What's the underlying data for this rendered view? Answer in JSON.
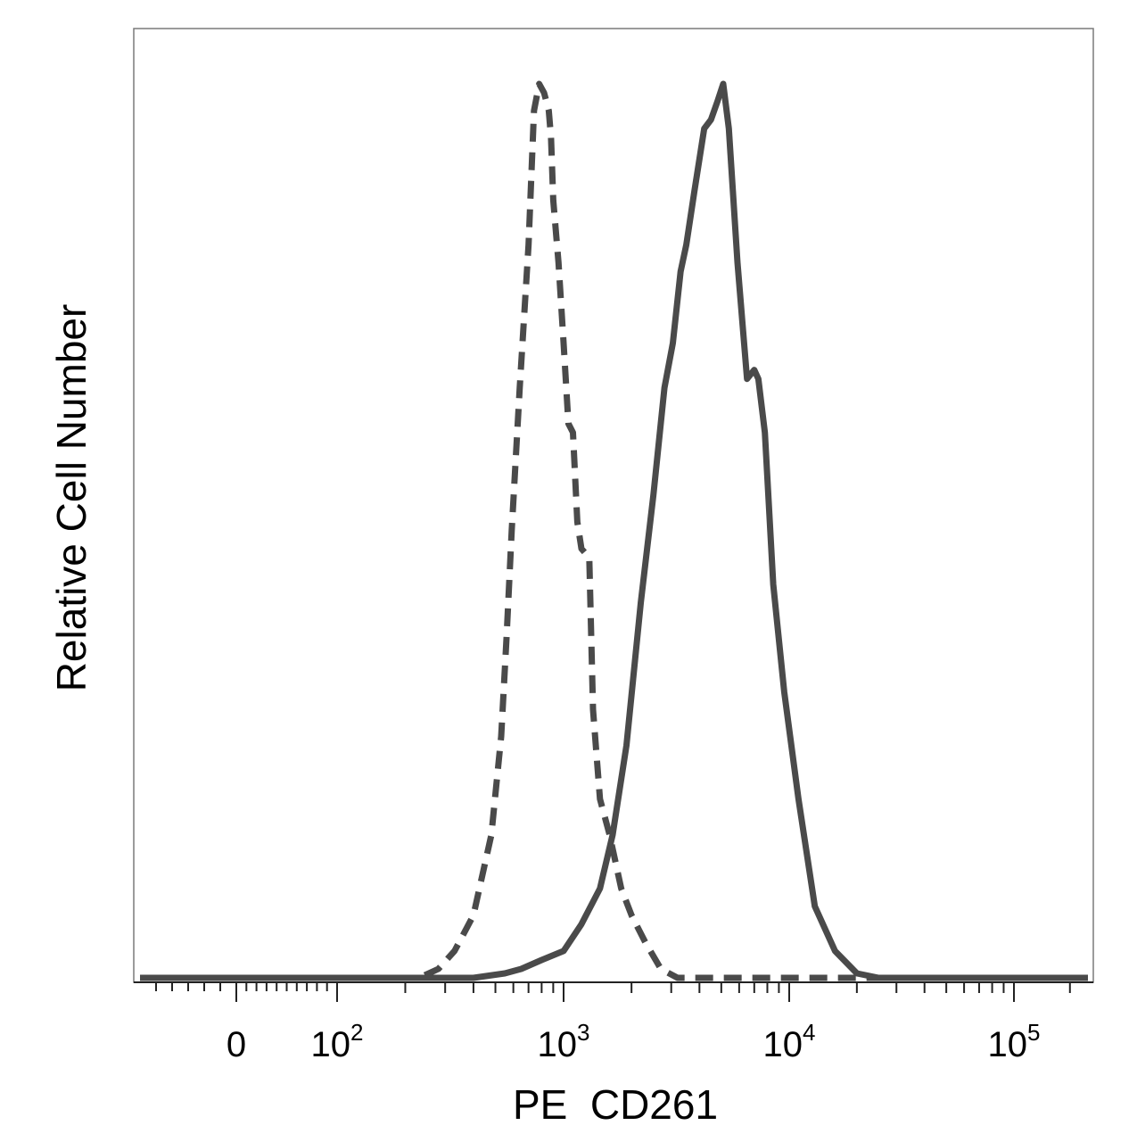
{
  "chart_data": {
    "type": "line",
    "title": "",
    "xlabel": "PE  CD261",
    "ylabel": "Relative Cell Number",
    "x_scale": "biexponential",
    "xlim": [
      -60,
      250000
    ],
    "ylim": [
      0,
      1
    ],
    "grid": false,
    "legend": "none",
    "x_ticks": [
      {
        "value": 0,
        "base": "0",
        "exp": ""
      },
      {
        "value": 100,
        "base": "10",
        "exp": "2"
      },
      {
        "value": 1000,
        "base": "10",
        "exp": "3"
      },
      {
        "value": 10000,
        "base": "10",
        "exp": "4"
      },
      {
        "value": 100000,
        "base": "10",
        "exp": "5"
      }
    ],
    "series": [
      {
        "style": "dashed",
        "color": "#4a4a4a",
        "points": [
          [
            -60,
            0.0
          ],
          [
            150,
            0.0
          ],
          [
            230,
            0.0
          ],
          [
            280,
            0.01
          ],
          [
            330,
            0.03
          ],
          [
            400,
            0.07
          ],
          [
            480,
            0.16
          ],
          [
            530,
            0.27
          ],
          [
            560,
            0.38
          ],
          [
            590,
            0.5
          ],
          [
            640,
            0.66
          ],
          [
            700,
            0.82
          ],
          [
            740,
            0.97
          ],
          [
            780,
            1.0
          ],
          [
            820,
            0.99
          ],
          [
            860,
            0.97
          ],
          [
            880,
            0.94
          ],
          [
            900,
            0.87
          ],
          [
            950,
            0.8
          ],
          [
            1000,
            0.71
          ],
          [
            1050,
            0.62
          ],
          [
            1100,
            0.61
          ],
          [
            1150,
            0.51
          ],
          [
            1200,
            0.48
          ],
          [
            1300,
            0.47
          ],
          [
            1350,
            0.3
          ],
          [
            1450,
            0.2
          ],
          [
            1600,
            0.16
          ],
          [
            1800,
            0.1
          ],
          [
            2000,
            0.07
          ],
          [
            2300,
            0.04
          ],
          [
            2700,
            0.01
          ],
          [
            3200,
            0.0
          ],
          [
            5000,
            0.0
          ],
          [
            20000,
            0.0
          ],
          [
            250000,
            0.0
          ]
        ]
      },
      {
        "style": "solid",
        "color": "#4a4a4a",
        "points": [
          [
            -60,
            0.0
          ],
          [
            400,
            0.0
          ],
          [
            550,
            0.005
          ],
          [
            650,
            0.01
          ],
          [
            800,
            0.02
          ],
          [
            1000,
            0.03
          ],
          [
            1200,
            0.06
          ],
          [
            1450,
            0.1
          ],
          [
            1650,
            0.16
          ],
          [
            1900,
            0.26
          ],
          [
            2200,
            0.42
          ],
          [
            2500,
            0.54
          ],
          [
            2800,
            0.66
          ],
          [
            3050,
            0.71
          ],
          [
            3300,
            0.79
          ],
          [
            3500,
            0.82
          ],
          [
            3800,
            0.88
          ],
          [
            4200,
            0.95
          ],
          [
            4500,
            0.96
          ],
          [
            4800,
            0.98
          ],
          [
            5100,
            1.0
          ],
          [
            5400,
            0.95
          ],
          [
            5900,
            0.8
          ],
          [
            6500,
            0.67
          ],
          [
            7000,
            0.68
          ],
          [
            7300,
            0.67
          ],
          [
            7800,
            0.61
          ],
          [
            8500,
            0.44
          ],
          [
            9500,
            0.32
          ],
          [
            11000,
            0.2
          ],
          [
            13000,
            0.08
          ],
          [
            16000,
            0.03
          ],
          [
            20000,
            0.005
          ],
          [
            25000,
            0.0
          ],
          [
            250000,
            0.0
          ]
        ]
      }
    ]
  }
}
